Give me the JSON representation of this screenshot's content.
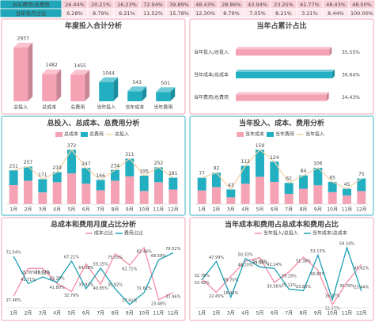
{
  "table": {
    "rows": [
      [
        "当年费用/总费用",
        "26.44%",
        "20.21%",
        "16.23%",
        "72.94%",
        "39.89%",
        "48.43%",
        "28.86%",
        "43.94%",
        "23.25%",
        "61.77%",
        "48.43%",
        "48.00%"
      ],
      [
        "当年各月占比",
        "6.28%",
        "8.79%",
        "6.21%",
        "11.52%",
        "15.78%",
        "12.30%",
        "8.79%",
        "7.05%",
        "8.21%",
        "3.21%",
        "8.44%",
        "100.00%"
      ]
    ]
  },
  "chart_data": [
    {
      "type": "bar3d",
      "title": "年度投入合计分析",
      "categories": [
        "总投入",
        "总成本",
        "总费用",
        "当年投入",
        "当年成本",
        "当年费用"
      ],
      "values": [
        2937,
        1482,
        1455,
        1044,
        543,
        501
      ],
      "colors": [
        "#f5a3b4",
        "#f5a3b4",
        "#f5a3b4",
        "#22afc2",
        "#22afc2",
        "#22afc2"
      ]
    },
    {
      "type": "hbar3d",
      "title": "当年占累计占比",
      "categories": [
        "当年投入/总投入",
        "当年成本/总成本",
        "当年费用/总费用"
      ],
      "values": [
        35.55,
        36.64,
        34.43
      ],
      "value_labels": [
        "35.55%",
        "36.64%",
        "34.43%"
      ],
      "colors": [
        "#f5a3b4",
        "#22afc2",
        "#f5a3b4"
      ]
    },
    {
      "type": "stacked_bar_line",
      "title": "总投入、总成本、总费用分析",
      "categories": [
        "1月",
        "2月",
        "3月",
        "4月",
        "5月",
        "6月",
        "7月",
        "8月",
        "9月",
        "10月",
        "11月",
        "12月"
      ],
      "series": [
        {
          "name": "总成本",
          "type": "bar",
          "color": "#f5a3b4",
          "values": [
            130,
            160,
            80,
            150,
            210,
            140,
            95,
            160,
            190,
            90,
            150,
            100
          ]
        },
        {
          "name": "总费用",
          "type": "bar",
          "color": "#22afc2",
          "values": [
            101,
            97,
            91,
            69,
            162,
            107,
            71,
            74,
            121,
            105,
            102,
            81
          ]
        },
        {
          "name": "总投入",
          "type": "line",
          "color": "#f2d3a8",
          "values": [
            231,
            257,
            171,
            219,
            372,
            247,
            166,
            234,
            311,
            195,
            252,
            181
          ]
        }
      ]
    },
    {
      "type": "stacked_bar_line",
      "title": "当年投入、成本、费用分析",
      "categories": [
        "1月",
        "2月",
        "3月",
        "4月",
        "5月",
        "6月",
        "7月",
        "8月",
        "9月",
        "10月",
        "11月",
        "12月"
      ],
      "series": [
        {
          "name": "当年成本",
          "type": "bar",
          "color": "#f5a3b4",
          "values": [
            40,
            50,
            20,
            60,
            80,
            65,
            30,
            45,
            55,
            35,
            25,
            38
          ]
        },
        {
          "name": "当年费用",
          "type": "bar",
          "color": "#22afc2",
          "values": [
            37,
            42,
            23,
            52,
            79,
            59,
            32,
            39,
            51,
            30,
            20,
            37
          ]
        },
        {
          "name": "当年投入",
          "type": "line",
          "color": "#f2d3a8",
          "values": [
            77,
            92,
            43,
            112,
            159,
            124,
            62,
            84,
            106,
            65,
            45,
            75
          ]
        }
      ]
    },
    {
      "type": "line",
      "title": "总成本和费用月度占比分析",
      "categories": [
        "1月",
        "2月",
        "3月",
        "4月",
        "5月",
        "6月",
        "7月",
        "8月",
        "9月",
        "10月",
        "11月",
        "12月"
      ],
      "series": [
        {
          "name": "成本占比",
          "color": "#f58ca3",
          "values": [
            27.46,
            58.76,
            59.02,
            41.8,
            32.79,
            64.08,
            40.85,
            75.55,
            62.71,
            82.46,
            23.48,
            31.46
          ],
          "value_labels": [
            "27.46%",
            "58.76%",
            "59.02%",
            "41.80%",
            "32.79%",
            "64.08%",
            "40.85%",
            "75.55%",
            "62.71%",
            "82.46%",
            "23.48%",
            "31.46%"
          ]
        },
        {
          "name": "费用占比",
          "color": "#1a9fb3",
          "values": [
            72.54,
            41.71,
            49.22,
            43.2,
            67.21,
            35.92,
            59.15,
            35.92,
            17.91,
            31.62,
            68.58,
            76.52
          ],
          "value_labels": [
            "72.54%",
            "41.71%",
            "49.22%",
            "43.20%",
            "67.21%",
            "35.92%",
            "59.15%",
            "35.92%",
            "17.91%",
            "31.62%",
            "68.58%",
            "76.52%"
          ]
        }
      ]
    },
    {
      "type": "line",
      "title": "当年成本和费用占总成本和费用占比",
      "categories": [
        "1月",
        "2月",
        "3月",
        "4月",
        "5月",
        "6月",
        "7月",
        "8月",
        "9月",
        "10月",
        "11月",
        "12月"
      ],
      "series": [
        {
          "name": "当年投入/总投入",
          "color": "#f58ca3",
          "values": [
            33.42,
            22.45,
            35.7,
            48.2,
            51.05,
            30.56,
            39.19,
            51.38,
            40.82,
            12.27,
            30.76,
            45.62
          ],
          "value_labels": [
            "33.42%",
            "22.45%",
            "35.70%",
            "48.20%",
            "51.05%",
            "30.56%",
            "39.19%",
            "51.38%",
            "40.82%",
            "12.27%",
            "30.76%",
            "45.62%"
          ]
        },
        {
          "name": "当年成本/总成本",
          "color": "#1a9fb3",
          "values": [
            32.78,
            47.99,
            18.43,
            50.33,
            43.36,
            42.14,
            25.11,
            23.8,
            53.13,
            16.27,
            59.34,
            23.44
          ],
          "value_labels": [
            "32.78%",
            "47.99%",
            "18.43%",
            "50.33%",
            "43.36%",
            "42.14%",
            "25.11%",
            "23.80%",
            "53.13%",
            "16.27%",
            "59.34%",
            "23.44%"
          ]
        }
      ]
    }
  ]
}
